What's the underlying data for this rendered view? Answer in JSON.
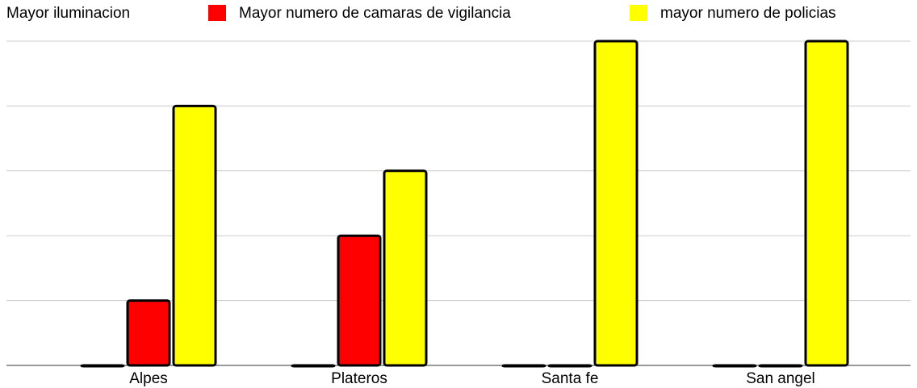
{
  "chart_data": {
    "type": "bar",
    "categories": [
      "Alpes",
      "Plateros",
      "Santa fe",
      "San angel"
    ],
    "series": [
      {
        "name": "Mayor iluminacion",
        "color": "#ffffff",
        "values": [
          0,
          0,
          0,
          0
        ]
      },
      {
        "name": "Mayor numero de camaras de vigilancia",
        "color": "#ff0000",
        "values": [
          1,
          2,
          0,
          0
        ]
      },
      {
        "name": "mayor numero de policias",
        "color": "#ffff00",
        "values": [
          4,
          3,
          5,
          5
        ]
      }
    ],
    "ylim": [
      0,
      5
    ],
    "yticks": [
      0,
      1,
      2,
      3,
      4,
      5
    ],
    "grid": true,
    "legend": "top"
  }
}
